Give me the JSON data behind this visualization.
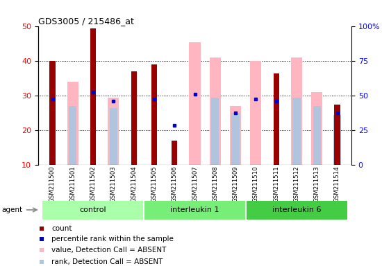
{
  "title": "GDS3005 / 215486_at",
  "samples": [
    "GSM211500",
    "GSM211501",
    "GSM211502",
    "GSM211503",
    "GSM211504",
    "GSM211505",
    "GSM211506",
    "GSM211507",
    "GSM211508",
    "GSM211509",
    "GSM211510",
    "GSM211511",
    "GSM211512",
    "GSM211513",
    "GSM211514"
  ],
  "count_values": [
    40,
    null,
    49.5,
    null,
    37,
    39,
    17,
    null,
    null,
    null,
    null,
    36.5,
    null,
    null,
    27.5
  ],
  "percentile_values": [
    29,
    null,
    31,
    28.5,
    null,
    29,
    21.5,
    30.5,
    null,
    25,
    29,
    28.5,
    null,
    null,
    25
  ],
  "absent_value_values": [
    null,
    34,
    null,
    29.5,
    null,
    null,
    null,
    45.5,
    41,
    27,
    40,
    null,
    41,
    31,
    null
  ],
  "absent_rank_values": [
    null,
    27,
    null,
    26.5,
    null,
    null,
    null,
    null,
    29.5,
    25,
    null,
    null,
    29.5,
    27,
    24.5
  ],
  "ylim_left": [
    10,
    50
  ],
  "ylim_right": [
    0,
    100
  ],
  "yticks_left": [
    10,
    20,
    30,
    40,
    50
  ],
  "yticks_right": [
    0,
    25,
    50,
    75,
    100
  ],
  "count_color": "#990000",
  "percentile_color": "#0000CC",
  "absent_value_color": "#FFB6C1",
  "absent_rank_color": "#B0C4DE",
  "group_labels": [
    "control",
    "interleukin 1",
    "interleukin 6"
  ],
  "group_colors": [
    "#AAFFAA",
    "#77EE77",
    "#44CC44"
  ],
  "group_starts": [
    0,
    5,
    10
  ],
  "group_ends": [
    5,
    10,
    15
  ]
}
